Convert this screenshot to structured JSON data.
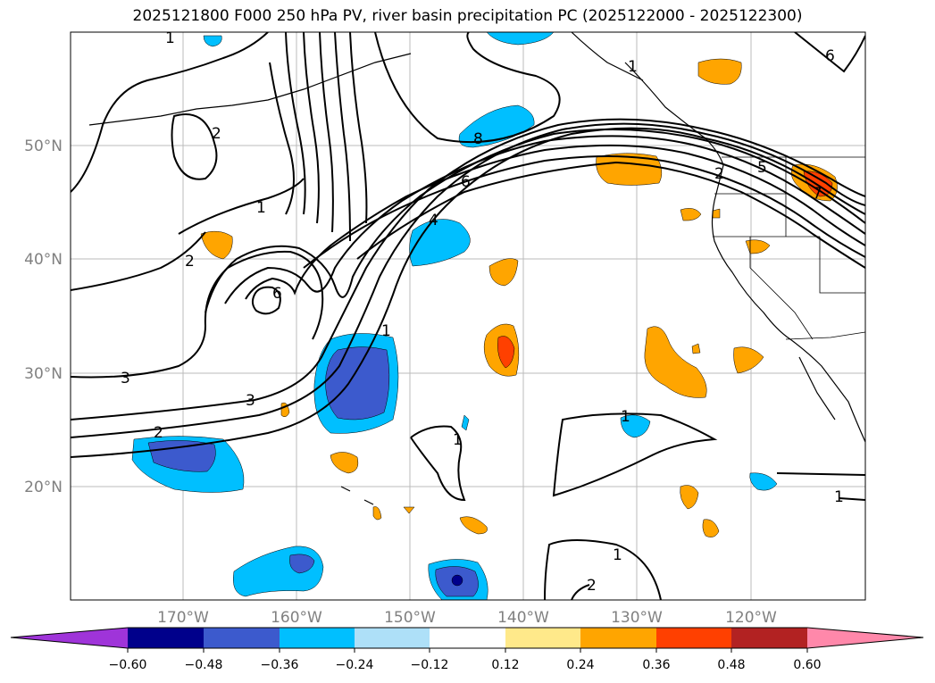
{
  "title": "2025121800 F000 250 hPa PV, river basin precipitation PC (2025122000 - 2025122300)",
  "map": {
    "lat_labels": [
      "50°N",
      "40°N",
      "30°N",
      "20°N"
    ],
    "lon_labels": [
      "170°W",
      "160°W",
      "150°W",
      "140°W",
      "130°W",
      "120°W"
    ],
    "label_color": "#808080",
    "gridline_color": "#bbbbbb"
  },
  "colorbar": {
    "tick_labels": [
      "-0.60",
      "-0.48",
      "-0.36",
      "-0.24",
      "-0.12",
      "0.12",
      "0.24",
      "0.36",
      "0.48",
      "0.60"
    ],
    "colors": [
      "#9f34d9",
      "#00008b",
      "#3c5acd",
      "#00bfff",
      "#aee0f8",
      "#ffffff",
      "#ffe98a",
      "#ffa500",
      "#ff4000",
      "#b22222",
      "#ff88aa"
    ]
  },
  "contour_labels": [
    "1",
    "2",
    "6",
    "8",
    "6",
    "4",
    "1",
    "2",
    "6",
    "5",
    "7",
    "1",
    "2",
    "3",
    "3",
    "2",
    "1",
    "1",
    "1",
    "1",
    "2",
    "1"
  ],
  "palette": {
    "purple": "#9f34d9",
    "navy": "#00008b",
    "royal": "#3c5acd",
    "sky": "#00bfff",
    "pale_blue": "#aee0f8",
    "white": "#ffffff",
    "yellow": "#ffe98a",
    "orange": "#ffa500",
    "red_orange": "#ff4000",
    "firebrick": "#b22222",
    "pink": "#ff88aa"
  }
}
